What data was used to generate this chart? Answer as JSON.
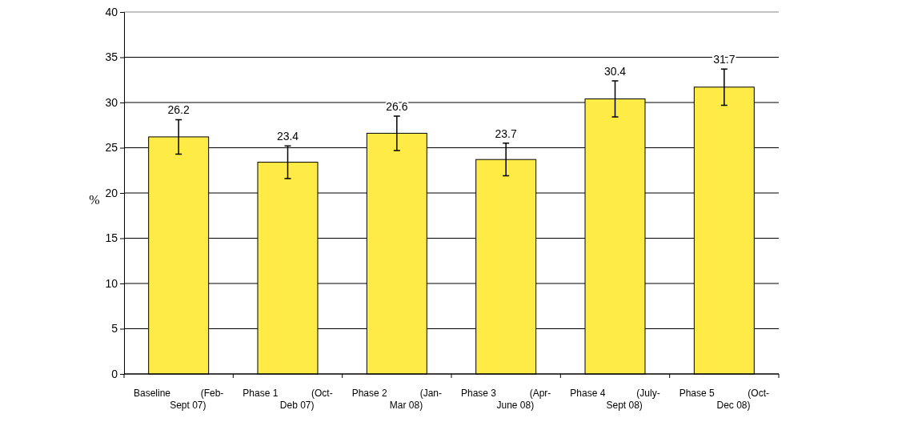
{
  "chart_data": {
    "type": "bar",
    "ylabel": "%",
    "categories": [
      "Baseline (Feb-Sept 07)",
      "Phase 1 (Oct-Deb 07)",
      "Phase 2 (Jan-Mar 08)",
      "Phase 3 (Apr-June 08)",
      "Phase 4 (July-Sept 08)",
      "Phase 5 (Oct-Dec 08)"
    ],
    "values": [
      26.2,
      23.4,
      26.6,
      23.7,
      30.4,
      31.7
    ],
    "errors": [
      1.9,
      1.8,
      1.9,
      1.8,
      2.0,
      2.0
    ],
    "color": "#ffeb45",
    "data_labels": true,
    "grid": "y",
    "ylim": [
      0,
      40
    ],
    "yticks": [
      0,
      5,
      10,
      15,
      20,
      25,
      30,
      35,
      40
    ]
  }
}
